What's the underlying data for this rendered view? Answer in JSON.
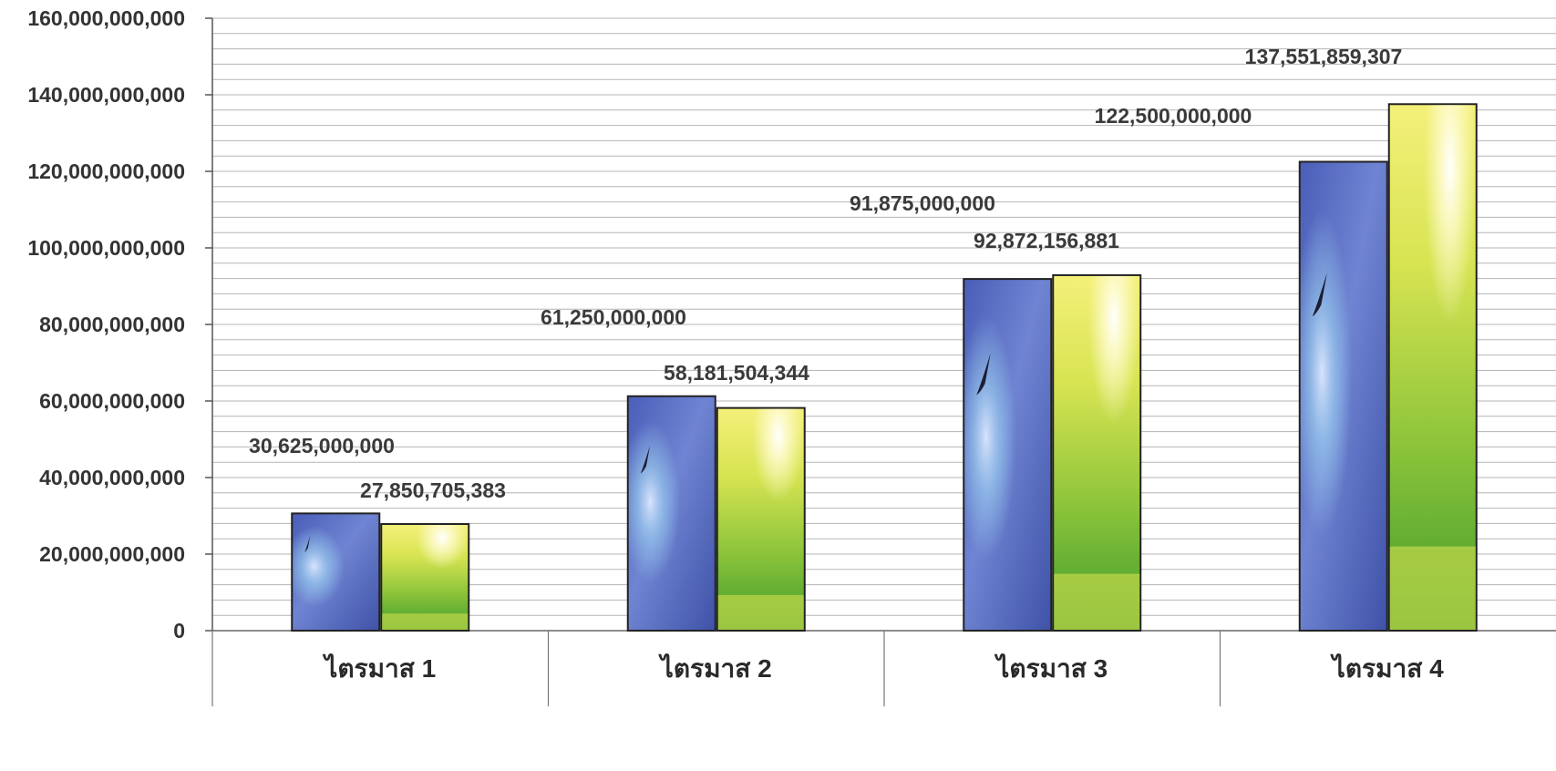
{
  "chart_data": {
    "type": "bar",
    "title": "",
    "xlabel": "",
    "ylabel": "",
    "categories": [
      "ไตรมาส 1",
      "ไตรมาส 2",
      "ไตรมาส 3",
      "ไตรมาส 4"
    ],
    "series": [
      {
        "values": [
          30625000000,
          61250000000,
          91875000000,
          122500000000
        ],
        "labels": [
          "30,625,000,000",
          "61,250,000,000",
          "91,875,000,000",
          "122,500,000,000"
        ],
        "fill": "sky-with-bird-image",
        "color": "#5b6fc2"
      },
      {
        "values": [
          27850705383,
          58181504344,
          92872156881,
          137551859307
        ],
        "labels": [
          "27,850,705,383",
          "58,181,504,344",
          "92,872,156,881",
          "137,551,859,307"
        ],
        "fill": "sun-and-grass-image",
        "color": "#b9d832"
      }
    ],
    "ylim": [
      0,
      160000000000
    ],
    "yticks": [
      0,
      20000000000,
      40000000000,
      60000000000,
      80000000000,
      100000000000,
      120000000000,
      140000000000,
      160000000000
    ],
    "ytick_labels": [
      "0",
      "20,000,000,000",
      "40,000,000,000",
      "60,000,000,000",
      "80,000,000,000",
      "100,000,000,000",
      "120,000,000,000",
      "140,000,000,000",
      "160,000,000,000"
    ],
    "grid": true,
    "legend": "none"
  }
}
